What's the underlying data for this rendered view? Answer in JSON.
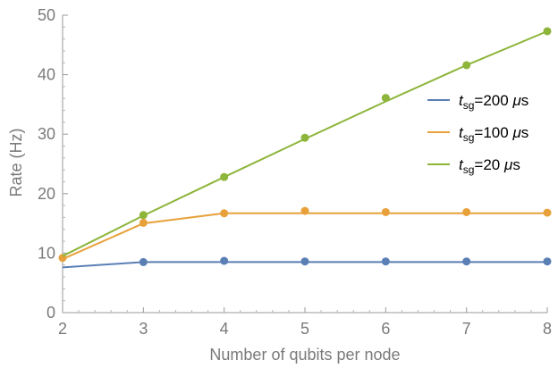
{
  "chart_data": {
    "type": "line",
    "xlabel": "Number of qubits per node",
    "ylabel": "Rate (Hz)",
    "xlim": [
      2,
      8
    ],
    "ylim": [
      0,
      50
    ],
    "xticks": [
      2,
      3,
      4,
      5,
      6,
      7,
      8
    ],
    "yticks": [
      0,
      10,
      20,
      30,
      40,
      50
    ],
    "grid": false,
    "legend_position": "right",
    "series": [
      {
        "name": "t_sg=200 μs",
        "legend": {
          "var": "t",
          "sub": "sg",
          "rest": "=200 ",
          "unit_italic": "μ",
          "unit_tail": "s"
        },
        "color": "#5a7fb5",
        "points_x": [
          3,
          4,
          5,
          6,
          7,
          8
        ],
        "points_y": [
          8.5,
          8.7,
          8.6,
          8.6,
          8.6,
          8.6
        ],
        "line_x": [
          2,
          3,
          4,
          5,
          6,
          7,
          8
        ],
        "line_y": [
          7.6,
          8.5,
          8.5,
          8.5,
          8.5,
          8.5,
          8.5
        ]
      },
      {
        "name": "t_sg=100 μs",
        "legend": {
          "var": "t",
          "sub": "sg",
          "rest": "=100 ",
          "unit_italic": "μ",
          "unit_tail": "s"
        },
        "color": "#e8a13a",
        "points_x": [
          2,
          3,
          4,
          5,
          6,
          7,
          8
        ],
        "points_y": [
          9.2,
          15.1,
          16.7,
          17.1,
          16.9,
          16.9,
          16.8
        ],
        "line_x": [
          2,
          3,
          4,
          5,
          6,
          7,
          8
        ],
        "line_y": [
          9.0,
          15.0,
          16.7,
          16.7,
          16.7,
          16.7,
          16.7
        ]
      },
      {
        "name": "t_sg=20 μs",
        "legend": {
          "var": "t",
          "sub": "sg",
          "rest": "=20 ",
          "unit_italic": "μ",
          "unit_tail": "s"
        },
        "color": "#8db53a",
        "points_x": [
          3,
          4,
          5,
          6,
          7,
          8
        ],
        "points_y": [
          16.4,
          22.8,
          29.4,
          36.1,
          41.6,
          47.3
        ],
        "line_x": [
          2,
          3,
          4,
          5,
          6,
          7,
          8
        ],
        "line_y": [
          9.5,
          16.3,
          22.8,
          29.2,
          35.5,
          41.6,
          47.3
        ]
      }
    ]
  }
}
